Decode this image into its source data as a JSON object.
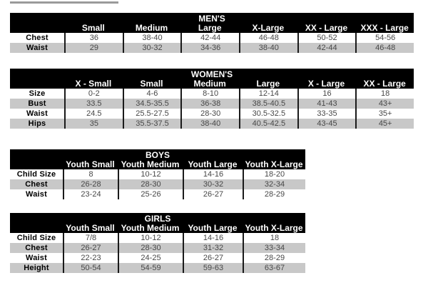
{
  "colors": {
    "header_bg": "#000000",
    "header_text": "#ffffff",
    "stripe_gray": "#c8c8c8",
    "row_white": "#ffffff",
    "value_text": "#474747",
    "label_text": "#000000",
    "divider": "#1a1a1a",
    "top_bar": "#9a9a9a"
  },
  "tables": [
    {
      "id": "mens",
      "title": "MEN'S",
      "columns": [
        "Small",
        "Medium",
        "Large",
        "X-Large",
        "XX - Large",
        "XXX - Large"
      ],
      "rows": [
        {
          "label": "Chest",
          "values": [
            "36",
            "38-40",
            "42-44",
            "46-48",
            "50-52",
            "54-56"
          ]
        },
        {
          "label": "Waist",
          "values": [
            "29",
            "30-32",
            "34-36",
            "38-40",
            "42-44",
            "46-48"
          ]
        }
      ]
    },
    {
      "id": "womens",
      "title": "WOMEN'S",
      "columns": [
        "X - Small",
        "Small",
        "Medium",
        "Large",
        "X - Large",
        "XX - Large"
      ],
      "rows": [
        {
          "label": "Size",
          "values": [
            "0-2",
            "4-6",
            "8-10",
            "12-14",
            "16",
            "18"
          ]
        },
        {
          "label": "Bust",
          "values": [
            "33.5",
            "34.5-35.5",
            "36-38",
            "38.5-40.5",
            "41-43",
            "43+"
          ]
        },
        {
          "label": "Waist",
          "values": [
            "24.5",
            "25.5-27.5",
            "28-30",
            "30.5-32.5",
            "33-35",
            "35+"
          ]
        },
        {
          "label": "Hips",
          "values": [
            "35",
            "35.5-37.5",
            "38-40",
            "40.5-42.5",
            "43-45",
            "45+"
          ]
        }
      ]
    },
    {
      "id": "boys",
      "title": "BOYS",
      "columns": [
        "Youth Small",
        "Youth Medium",
        "Youth Large",
        "Youth X-Large"
      ],
      "rows": [
        {
          "label": "Child Size",
          "values": [
            "8",
            "10-12",
            "14-16",
            "18-20"
          ]
        },
        {
          "label": "Chest",
          "values": [
            "26-28",
            "28-30",
            "30-32",
            "32-34"
          ]
        },
        {
          "label": "Waist",
          "values": [
            "23-24",
            "25-26",
            "26-27",
            "28-29"
          ]
        }
      ]
    },
    {
      "id": "girls",
      "title": "GIRLS",
      "columns": [
        "Youth Small",
        "Youth Medium",
        "Youth Large",
        "Youth X-Large"
      ],
      "rows": [
        {
          "label": "Child Size",
          "values": [
            "7/8",
            "10-12",
            "14-16",
            "18"
          ]
        },
        {
          "label": "Chest",
          "values": [
            "26-27",
            "28-30",
            "31-32",
            "33-34"
          ]
        },
        {
          "label": "Waist",
          "values": [
            "22-23",
            "24-25",
            "26-27",
            "28-29"
          ]
        },
        {
          "label": "Height",
          "values": [
            "50-54",
            "54-59",
            "59-63",
            "63-67"
          ]
        }
      ]
    }
  ]
}
